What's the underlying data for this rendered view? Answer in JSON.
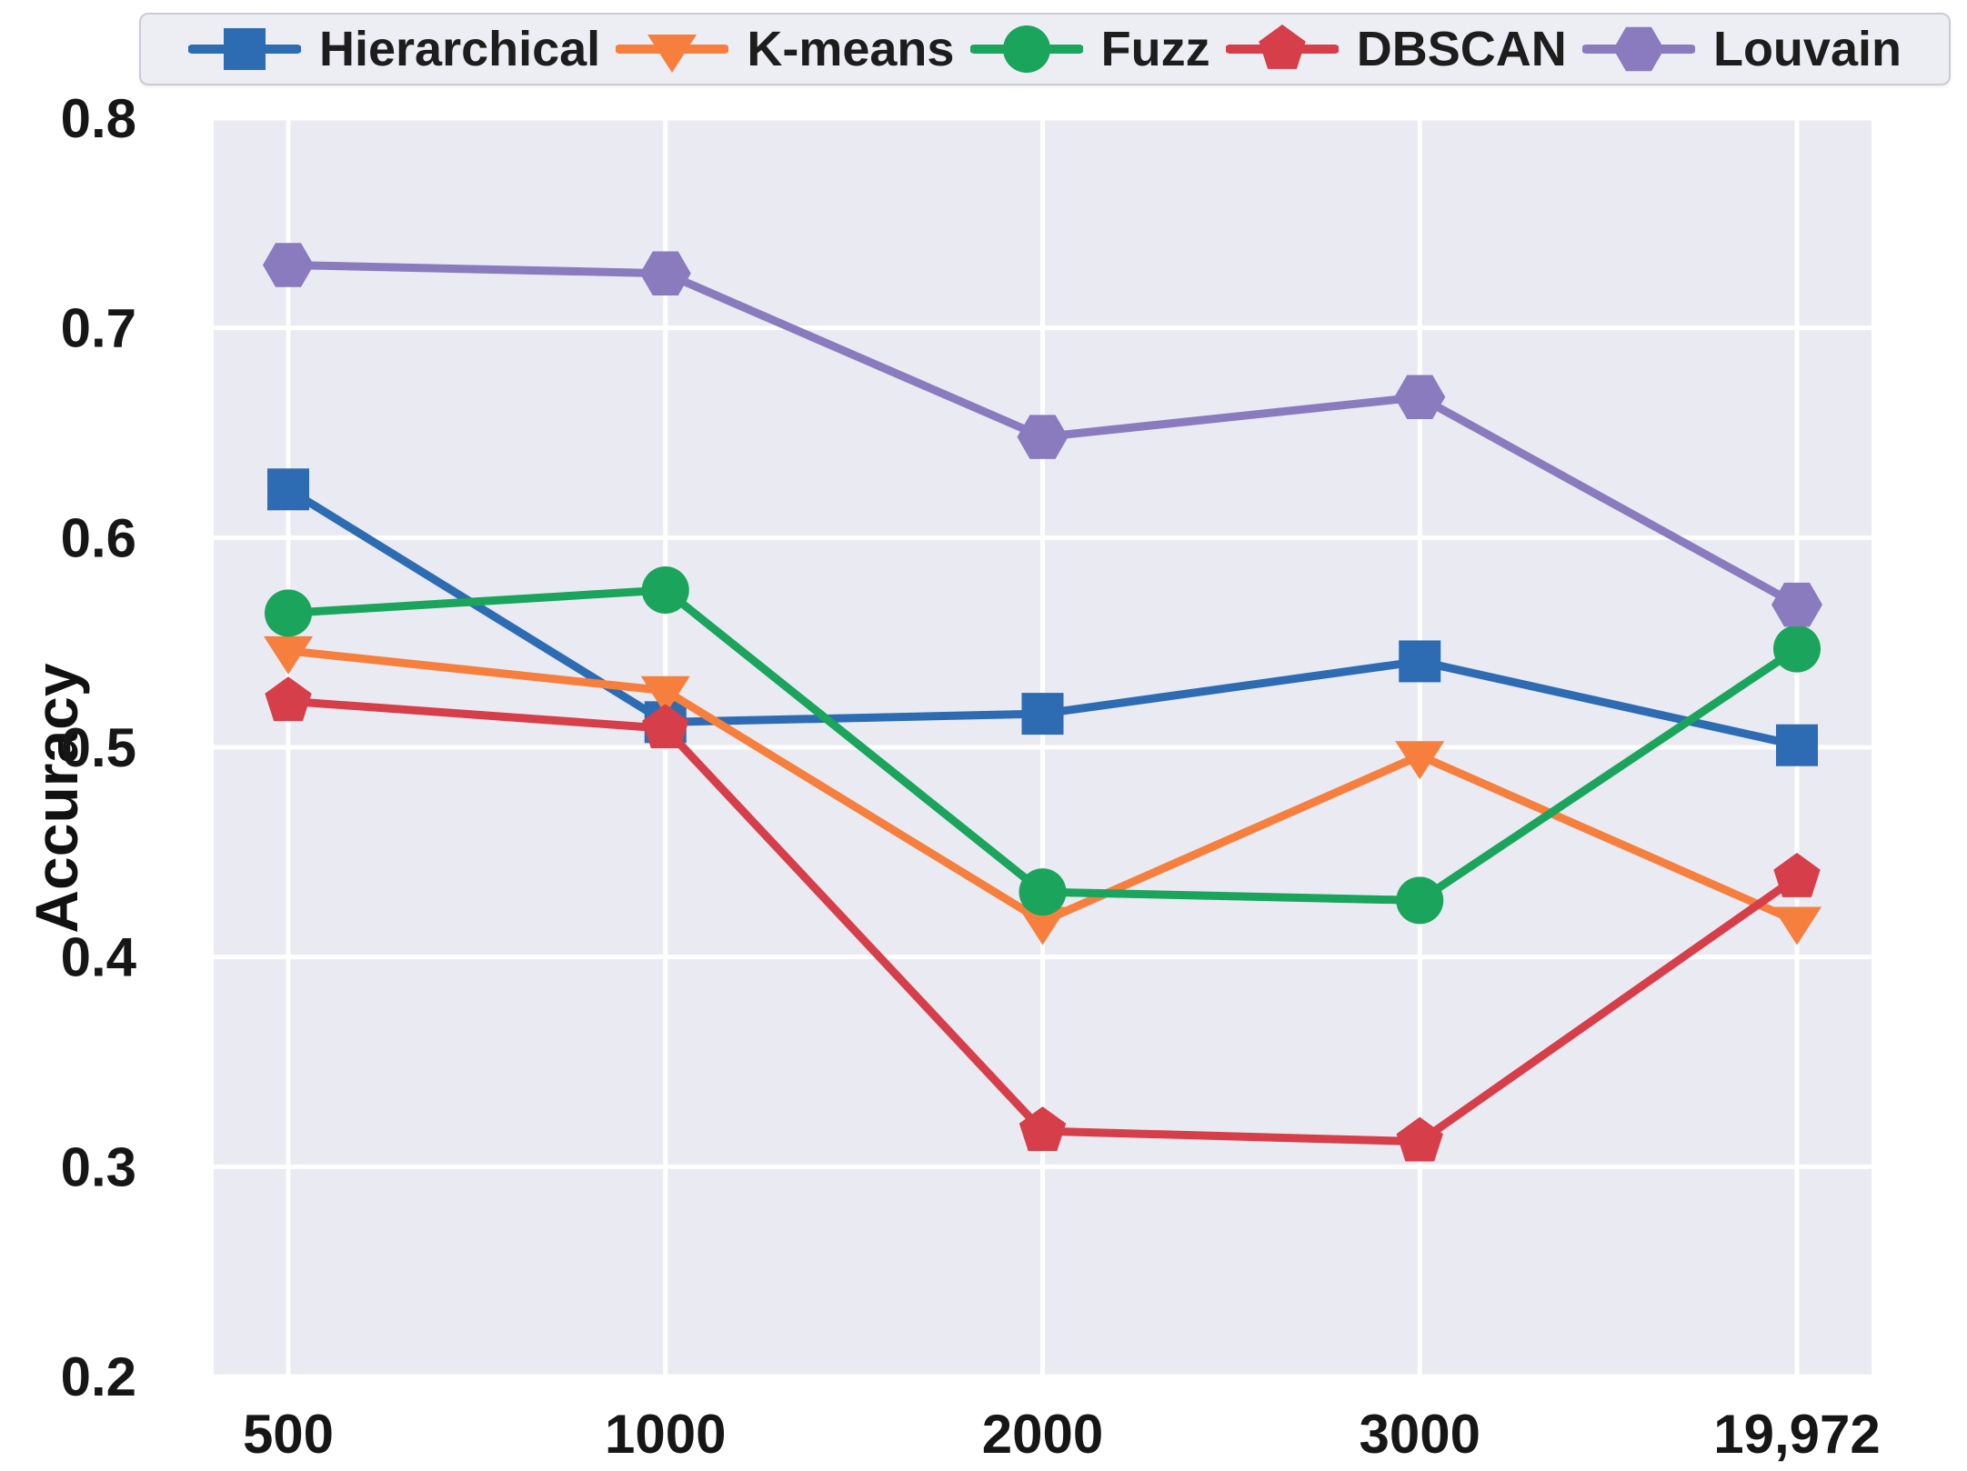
{
  "chart_data": {
    "type": "line",
    "title": "",
    "xlabel": "",
    "ylabel": "Accuracy",
    "categories": [
      "500",
      "1000",
      "2000",
      "3000",
      "19,972"
    ],
    "ylim": [
      0.2,
      0.8
    ],
    "yticks": [
      0.2,
      0.3,
      0.4,
      0.5,
      0.6,
      0.7,
      0.8
    ],
    "ytick_labels": [
      "0.2",
      "0.3",
      "0.4",
      "0.5",
      "0.6",
      "0.7",
      "0.8"
    ],
    "grid": true,
    "legend_position": "top",
    "plot_background": "#e9eaf2",
    "gridline_color": "#ffffff",
    "series": [
      {
        "name": "Hierarchical",
        "marker": "square",
        "color": "#2d6cb3",
        "values": [
          0.623,
          0.512,
          0.516,
          0.541,
          0.501
        ]
      },
      {
        "name": "K-means",
        "marker": "triangle-down",
        "color": "#f67f3d",
        "values": [
          0.546,
          0.527,
          0.417,
          0.496,
          0.417
        ]
      },
      {
        "name": "Fuzz",
        "marker": "circle",
        "color": "#1aa45c",
        "values": [
          0.564,
          0.575,
          0.431,
          0.427,
          0.547
        ]
      },
      {
        "name": "DBSCAN",
        "marker": "pentagon",
        "color": "#d63e49",
        "values": [
          0.522,
          0.509,
          0.317,
          0.312,
          0.438
        ]
      },
      {
        "name": "Louvain",
        "marker": "hexagon",
        "color": "#8a7bbe",
        "values": [
          0.73,
          0.726,
          0.648,
          0.667,
          0.568
        ]
      }
    ]
  }
}
